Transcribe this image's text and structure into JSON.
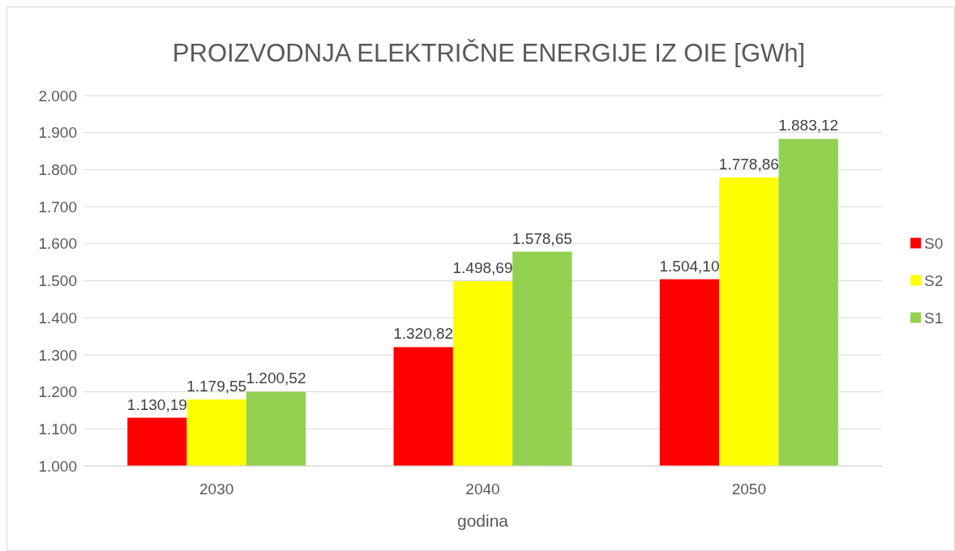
{
  "chart_data": {
    "type": "bar",
    "title": "PROIZVODNJA ELEKTRIČNE ENERGIJE IZ OIE [GWh]",
    "xlabel": "godina",
    "categories": [
      "2030",
      "2040",
      "2050"
    ],
    "series": [
      {
        "name": "S0",
        "color": "#ff0000",
        "values": [
          1130.19,
          1320.82,
          1504.1
        ],
        "value_labels": [
          "1.130,19",
          "1.320,82",
          "1.504,10"
        ]
      },
      {
        "name": "S2",
        "color": "#ffff00",
        "values": [
          1179.55,
          1498.69,
          1778.86
        ],
        "value_labels": [
          "1.179,55",
          "1.498,69",
          "1.778,86"
        ]
      },
      {
        "name": "S1",
        "color": "#92d050",
        "values": [
          1200.52,
          1578.65,
          1883.12
        ],
        "value_labels": [
          "1.200,52",
          "1.578,65",
          "1.883,12"
        ]
      }
    ],
    "ylim": [
      1000,
      2000
    ],
    "yticks": [
      {
        "value": 1000,
        "label": "1.000"
      },
      {
        "value": 1100,
        "label": "1.100"
      },
      {
        "value": 1200,
        "label": "1.200"
      },
      {
        "value": 1300,
        "label": "1.300"
      },
      {
        "value": 1400,
        "label": "1.400"
      },
      {
        "value": 1500,
        "label": "1.500"
      },
      {
        "value": 1600,
        "label": "1.600"
      },
      {
        "value": 1700,
        "label": "1.700"
      },
      {
        "value": 1800,
        "label": "1.800"
      },
      {
        "value": 1900,
        "label": "1.900"
      },
      {
        "value": 2000,
        "label": "2.000"
      }
    ],
    "grid": "y",
    "legend": "right"
  }
}
